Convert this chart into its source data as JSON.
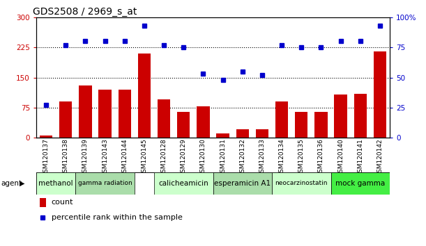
{
  "title": "GDS2508 / 2969_s_at",
  "samples": [
    "GSM120137",
    "GSM120138",
    "GSM120139",
    "GSM120143",
    "GSM120144",
    "GSM120145",
    "GSM120128",
    "GSM120129",
    "GSM120130",
    "GSM120131",
    "GSM120132",
    "GSM120133",
    "GSM120134",
    "GSM120135",
    "GSM120136",
    "GSM120140",
    "GSM120141",
    "GSM120142"
  ],
  "counts": [
    5,
    90,
    130,
    120,
    120,
    210,
    95,
    65,
    78,
    10,
    22,
    22,
    90,
    65,
    65,
    108,
    110,
    215
  ],
  "percentiles": [
    27,
    77,
    80,
    80,
    80,
    93,
    77,
    75,
    53,
    48,
    55,
    52,
    77,
    75,
    75,
    80,
    80,
    93
  ],
  "agents": [
    {
      "label": "methanol",
      "start": 0,
      "end": 1,
      "color": "#ccffcc"
    },
    {
      "label": "gamma radiation",
      "start": 2,
      "end": 4,
      "color": "#aaddaa"
    },
    {
      "label": "calicheamicin",
      "start": 6,
      "end": 8,
      "color": "#ccffcc"
    },
    {
      "label": "esperamicin A1",
      "start": 9,
      "end": 11,
      "color": "#aaddaa"
    },
    {
      "label": "neocarzinostatin",
      "start": 12,
      "end": 14,
      "color": "#ccffcc"
    },
    {
      "label": "mock gamma",
      "start": 15,
      "end": 17,
      "color": "#44ee44"
    }
  ],
  "bar_color": "#cc0000",
  "dot_color": "#0000cc",
  "ylim_left": [
    0,
    300
  ],
  "ylim_right": [
    0,
    100
  ],
  "yticks_left": [
    0,
    75,
    150,
    225,
    300
  ],
  "yticks_right": [
    0,
    25,
    50,
    75,
    100
  ],
  "ytick_labels_right": [
    "0",
    "25",
    "50",
    "75",
    "100%"
  ],
  "hlines": [
    75,
    150,
    225
  ],
  "title_fontsize": 10,
  "legend_count_label": "count",
  "legend_pct_label": "percentile rank within the sample",
  "agent_label": "agent"
}
